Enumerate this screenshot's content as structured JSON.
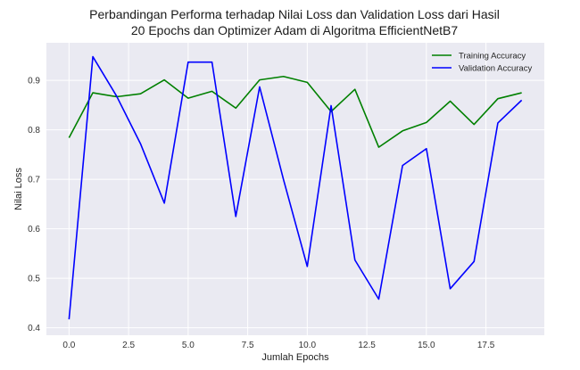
{
  "chart_data": {
    "type": "line",
    "title": "Perbandingan Performa terhadap Nilai Loss dan Validation Loss dari Hasil\n20 Epochs dan Optimizer Adam di Algoritma EfficientNetB7",
    "xlabel": "Jumlah Epochs",
    "ylabel": "Nilai Loss",
    "xlim": [
      -0.95,
      19.95
    ],
    "ylim": [
      0.385,
      0.976
    ],
    "xticks": [
      0.0,
      2.5,
      5.0,
      7.5,
      10.0,
      12.5,
      15.0,
      17.5
    ],
    "xtick_labels": [
      "0.0",
      "2.5",
      "5.0",
      "7.5",
      "10.0",
      "12.5",
      "15.0",
      "17.5"
    ],
    "yticks": [
      0.4,
      0.5,
      0.6,
      0.7,
      0.8,
      0.9
    ],
    "ytick_labels": [
      "0.4",
      "0.5",
      "0.6",
      "0.7",
      "0.8",
      "0.9"
    ],
    "grid": true,
    "legend_position": "top-right",
    "x": [
      0,
      1,
      2,
      3,
      4,
      5,
      6,
      7,
      8,
      9,
      10,
      11,
      12,
      13,
      14,
      15,
      16,
      17,
      18,
      19
    ],
    "series": [
      {
        "name": "Training Accuracy",
        "color": "#008000",
        "values": [
          0.784,
          0.875,
          0.867,
          0.873,
          0.901,
          0.864,
          0.878,
          0.844,
          0.901,
          0.908,
          0.896,
          0.837,
          0.882,
          0.765,
          0.798,
          0.815,
          0.858,
          0.811,
          0.863,
          0.875
        ]
      },
      {
        "name": "Validation Accuracy",
        "color": "#0000ff",
        "values": [
          0.417,
          0.948,
          0.868,
          0.772,
          0.652,
          0.937,
          0.937,
          0.625,
          0.887,
          0.7,
          0.524,
          0.849,
          0.537,
          0.458,
          0.728,
          0.762,
          0.479,
          0.534,
          0.814,
          0.86
        ]
      }
    ]
  },
  "style": {
    "plot_background": "#eaeaf2",
    "grid_color": "#ffffff"
  }
}
